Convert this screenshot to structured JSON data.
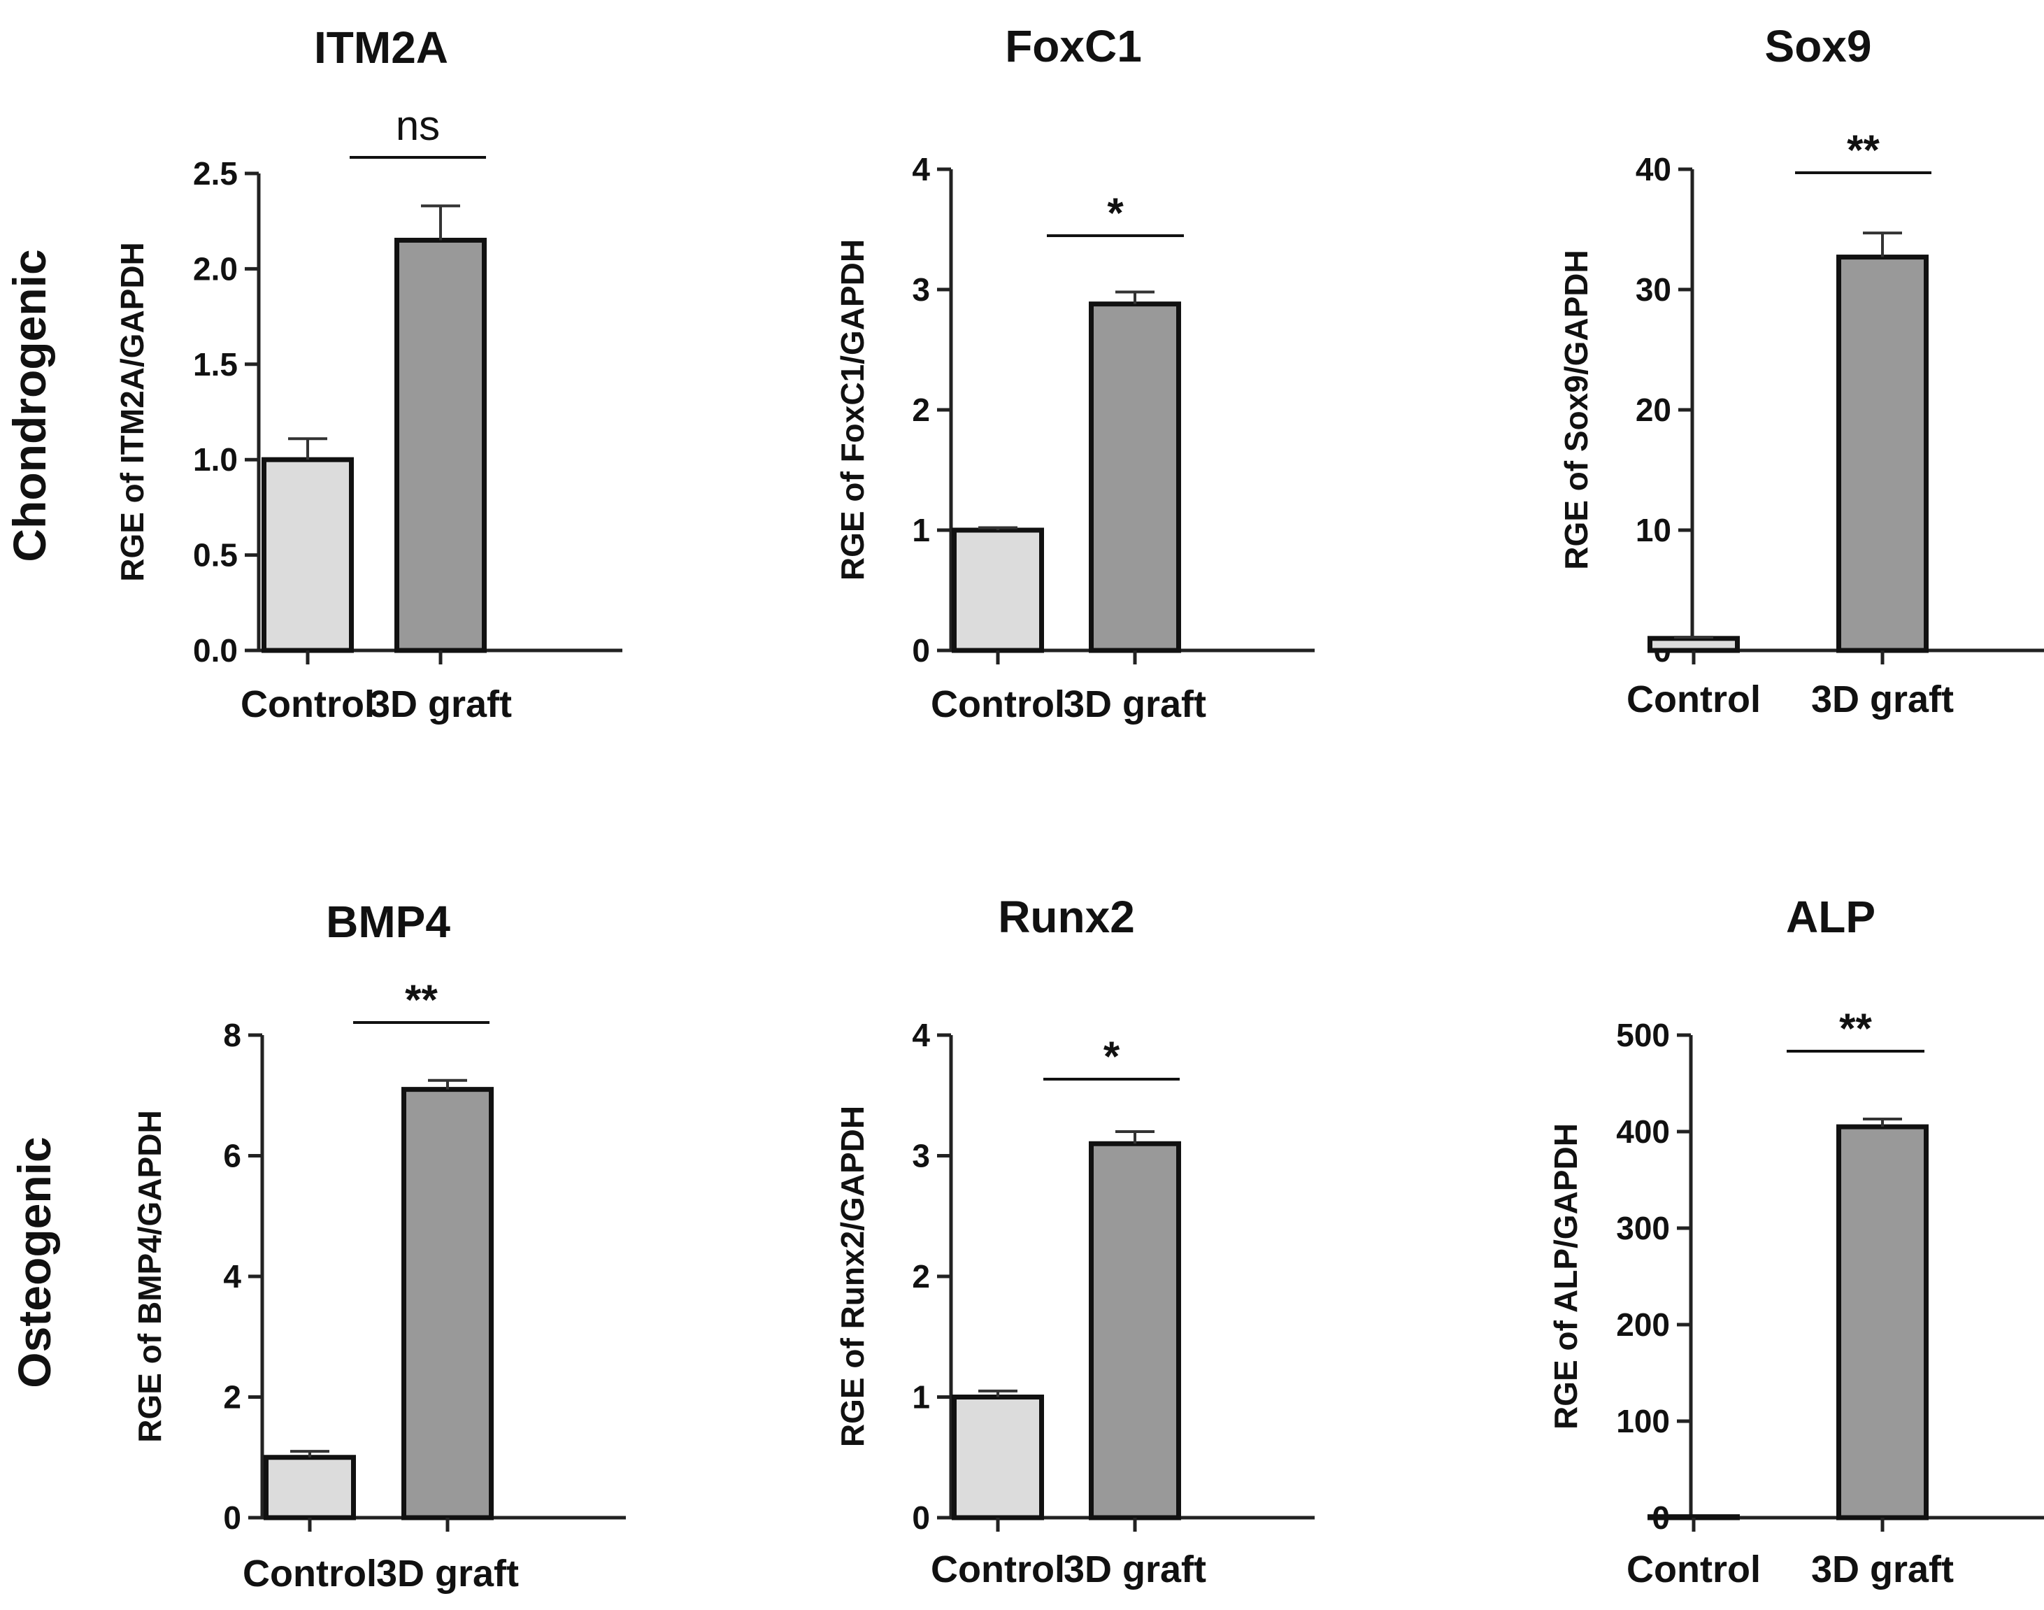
{
  "row_labels": [
    "Chondrogenic",
    "Osteogenic"
  ],
  "chart_data": [
    {
      "type": "bar",
      "title": "ITM2A",
      "ylabel": "RGE of ITM2A/GAPDH",
      "categories": [
        "Control",
        "3D graft"
      ],
      "values": [
        1.0,
        2.15
      ],
      "errors": [
        0.11,
        0.18
      ],
      "ylim": [
        0,
        2.5
      ],
      "yticks": [
        0,
        0.5,
        1,
        1.5,
        2,
        2.5
      ],
      "ytick_labels": [
        "0.0",
        "0.5",
        "1.0",
        "1.5",
        "2.0",
        "2.5"
      ],
      "significance": "ns",
      "bar_colors": [
        "#dcdcdc",
        "#999999"
      ]
    },
    {
      "type": "bar",
      "title": "FoxC1",
      "ylabel": "RGE of FoxC1/GAPDH",
      "categories": [
        "Control",
        "3D graft"
      ],
      "values": [
        1.0,
        2.88
      ],
      "errors": [
        0.02,
        0.1
      ],
      "ylim": [
        0,
        4
      ],
      "yticks": [
        0,
        1,
        2,
        3,
        4
      ],
      "ytick_labels": [
        "0",
        "1",
        "2",
        "3",
        "4"
      ],
      "significance": "*",
      "bar_colors": [
        "#dcdcdc",
        "#999999"
      ]
    },
    {
      "type": "bar",
      "title": "Sox9",
      "ylabel": "RGE of Sox9/GAPDH",
      "categories": [
        "Control",
        "3D graft"
      ],
      "values": [
        1.0,
        32.7
      ],
      "errors": [
        0.1,
        2.0
      ],
      "ylim": [
        0,
        40
      ],
      "yticks": [
        0,
        10,
        20,
        30,
        40
      ],
      "ytick_labels": [
        "0",
        "10",
        "20",
        "30",
        "40"
      ],
      "significance": "**",
      "bar_colors": [
        "#dcdcdc",
        "#999999"
      ]
    },
    {
      "type": "bar",
      "title": "BMP4",
      "ylabel": "RGE of BMP4/GAPDH",
      "categories": [
        "Control",
        "3D graft"
      ],
      "values": [
        1.0,
        7.1
      ],
      "errors": [
        0.1,
        0.15
      ],
      "ylim": [
        0,
        8
      ],
      "yticks": [
        0,
        2,
        4,
        6,
        8
      ],
      "ytick_labels": [
        "0",
        "2",
        "4",
        "6",
        "8"
      ],
      "significance": "**",
      "bar_colors": [
        "#dcdcdc",
        "#999999"
      ]
    },
    {
      "type": "bar",
      "title": "Runx2",
      "ylabel": "RGE of Runx2/GAPDH",
      "categories": [
        "Control",
        "3D graft"
      ],
      "values": [
        1.0,
        3.1
      ],
      "errors": [
        0.05,
        0.1
      ],
      "ylim": [
        0,
        4
      ],
      "yticks": [
        0,
        1,
        2,
        3,
        4
      ],
      "ytick_labels": [
        "0",
        "1",
        "2",
        "3",
        "4"
      ],
      "significance": "*",
      "bar_colors": [
        "#dcdcdc",
        "#999999"
      ]
    },
    {
      "type": "bar",
      "title": "ALP",
      "ylabel": "RGE of ALP/GAPDH",
      "categories": [
        "Control",
        "3D graft"
      ],
      "values": [
        1.0,
        405
      ],
      "errors": [
        0,
        8
      ],
      "ylim": [
        0,
        500
      ],
      "yticks": [
        0,
        100,
        200,
        300,
        400,
        500
      ],
      "ytick_labels": [
        "0",
        "100",
        "200",
        "300",
        "400",
        "500"
      ],
      "significance": "**",
      "bar_colors": [
        "#dcdcdc",
        "#999999"
      ]
    }
  ]
}
